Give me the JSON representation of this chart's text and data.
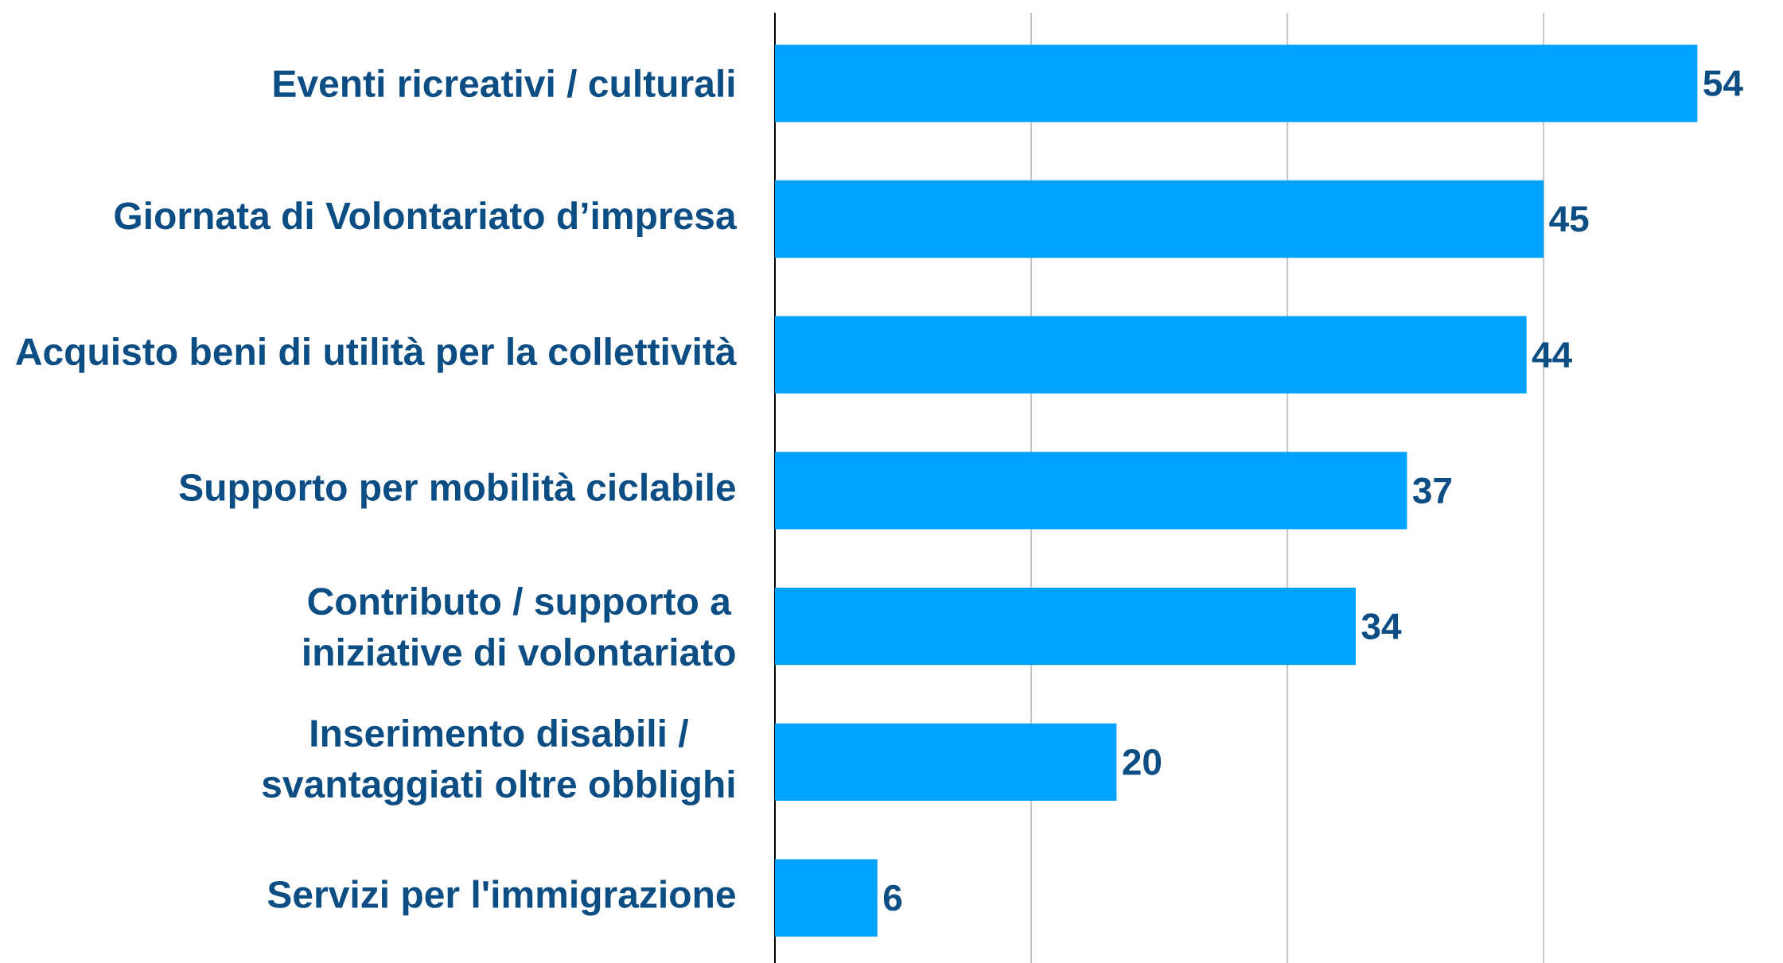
{
  "chart_data": {
    "type": "bar",
    "orientation": "horizontal",
    "categories": [
      "Eventi ricreativi / culturali",
      "Giornata di Volontariato d’impresa",
      "Acquisto beni di utilità per la collettività",
      "Supporto per mobilità ciclabile",
      "Contributo / supporto a\niniziative di volontariato",
      "Inserimento disabili /\nsvantaggiati oltre obblighi",
      "Servizi per l'immigrazione"
    ],
    "values": [
      54,
      45,
      44,
      37,
      34,
      20,
      6
    ],
    "color": "#00a2ff",
    "data_labels": true,
    "xticks": [
      {
        "value": 15,
        "label": null
      },
      {
        "value": 30,
        "label": null
      },
      {
        "value": 45,
        "label": null
      }
    ],
    "grid": "x",
    "tick_labels": "y"
  }
}
